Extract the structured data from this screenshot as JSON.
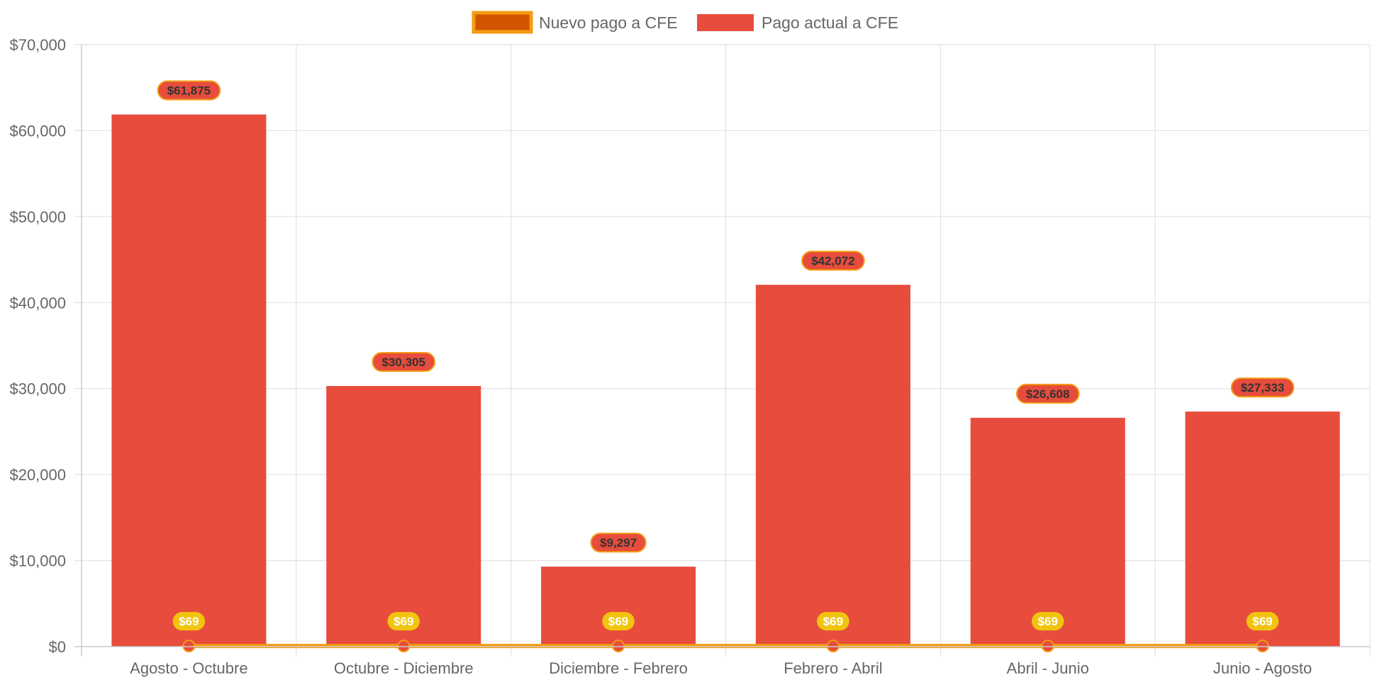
{
  "chart_data": {
    "type": "bar",
    "categories": [
      "Agosto - Octubre",
      "Octubre - Diciembre",
      "Diciembre - Febrero",
      "Febrero - Abril",
      "Abril - Junio",
      "Junio - Agosto"
    ],
    "series": [
      {
        "name": "Pago actual a CFE",
        "kind": "bar",
        "color": "#e74c3c",
        "values": [
          61875,
          30305,
          9297,
          42072,
          26608,
          27333
        ],
        "labels": [
          "$61,875",
          "$30,305",
          "$9,297",
          "$42,072",
          "$26,608",
          "$27,333"
        ]
      },
      {
        "name": "Nuevo pago a CFE",
        "kind": "line",
        "color": "#f39c12",
        "fill_color": "#d35400",
        "values": [
          69,
          69,
          69,
          69,
          69,
          69
        ],
        "labels": [
          "$69",
          "$69",
          "$69",
          "$69",
          "$69",
          "$69"
        ]
      }
    ],
    "legend": [
      "Nuevo pago a CFE",
      "Pago actual a CFE"
    ],
    "legend_position": "top",
    "ylim": [
      0,
      70000
    ],
    "y_ticks": [
      "$0",
      "$10,000",
      "$20,000",
      "$30,000",
      "$40,000",
      "$50,000",
      "$60,000",
      "$70,000"
    ],
    "grid": true,
    "title": "",
    "xlabel": "",
    "ylabel": ""
  },
  "colors": {
    "grid": "#dddddd",
    "tick_text": "#666666",
    "label_dark": "#333333",
    "label_light": "#ffffff",
    "line_label_bg": "#f1c40f"
  }
}
